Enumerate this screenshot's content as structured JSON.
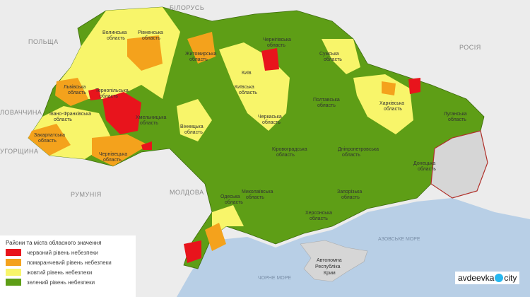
{
  "colors": {
    "red": "#e8141c",
    "orange": "#f4a21c",
    "yellow": "#f8f56a",
    "green": "#5e9e16",
    "background": "#ececec",
    "sea": "#b8cfe6",
    "occupied": "#d6d6d6"
  },
  "countries": {
    "belarus": "БІЛОРУСЬ",
    "poland": "ПОЛЬЩА",
    "russia": "РОСІЯ",
    "slovakia": "ЛОВАЧЧИНА",
    "hungary": "УГОРЩИНА",
    "romania": "РУМУНІЯ",
    "moldova": "МОЛДОВА"
  },
  "seas": {
    "azov": "АЗОВСЬКЕ МОРЕ",
    "black": "ЧОРНЕ МОРЕ"
  },
  "crimea": [
    "Автономна",
    "Республіка",
    "Крим"
  ],
  "oblasts": [
    {
      "l1": "Волинська",
      "l2": "область"
    },
    {
      "l1": "Рівненська",
      "l2": "область"
    },
    {
      "l1": "Житомирська",
      "l2": "область"
    },
    {
      "l1": "Чернігівська",
      "l2": "область"
    },
    {
      "l1": "Сумська",
      "l2": "область"
    },
    {
      "l1": "Харківська",
      "l2": "область"
    },
    {
      "l1": "Луганська",
      "l2": "область"
    },
    {
      "l1": "Донецька",
      "l2": "область"
    },
    {
      "l1": "Запорізька",
      "l2": "область"
    },
    {
      "l1": "Херсонська",
      "l2": "область"
    },
    {
      "l1": "Миколаївська",
      "l2": "область"
    },
    {
      "l1": "Одеська",
      "l2": "область"
    },
    {
      "l1": "Кіровоградська",
      "l2": "область"
    },
    {
      "l1": "Дніпропетровська",
      "l2": "область"
    },
    {
      "l1": "Полтавська",
      "l2": "область"
    },
    {
      "l1": "Черкаська",
      "l2": "область"
    },
    {
      "l1": "Київська",
      "l2": "область"
    },
    {
      "l1": "Київ",
      "l2": ""
    },
    {
      "l1": "Вінницька",
      "l2": "область"
    },
    {
      "l1": "Хмельницька",
      "l2": "область"
    },
    {
      "l1": "Тернопільська",
      "l2": "область"
    },
    {
      "l1": "Львівська",
      "l2": "область"
    },
    {
      "l1": "Івано-Франківська",
      "l2": "область"
    },
    {
      "l1": "Закарпатська",
      "l2": "область"
    },
    {
      "l1": "Чернівецька",
      "l2": "область"
    }
  ],
  "legend": {
    "title": "Райони та міста обласного значення",
    "items": [
      {
        "label": "червоний рівень небезпеки",
        "color": "#e8141c"
      },
      {
        "label": "помаранчевий рівень небезпеки",
        "color": "#f4a21c"
      },
      {
        "label": "жовтий рівень небезпеки",
        "color": "#f8f56a"
      },
      {
        "label": "зелений рівень небезпеки",
        "color": "#5e9e16"
      }
    ]
  },
  "watermark": {
    "left": "avdeevka",
    "right": "city"
  }
}
